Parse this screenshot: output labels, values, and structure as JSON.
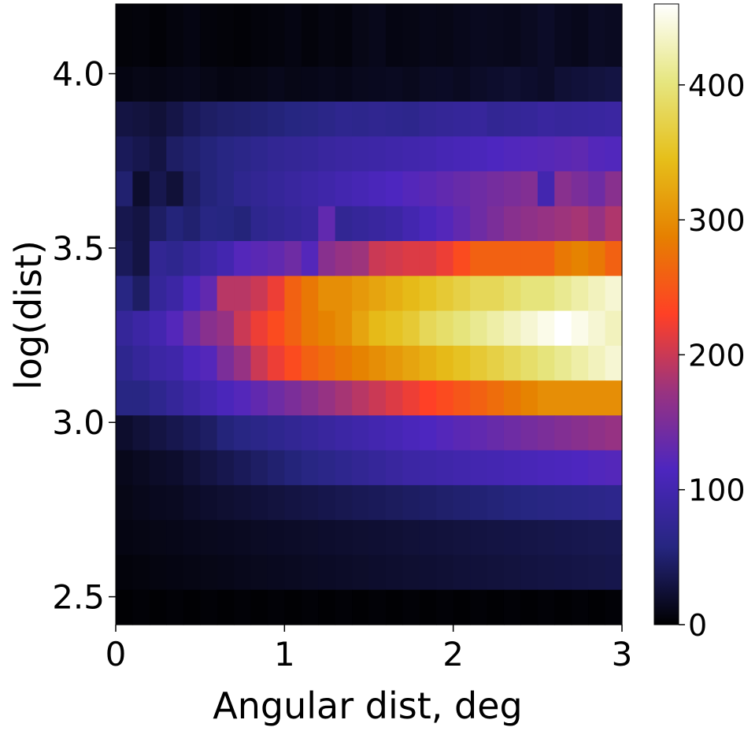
{
  "chart_data": {
    "type": "heatmap",
    "title": "",
    "xlabel": "Angular dist, deg",
    "ylabel": "log(dist)",
    "xlim": [
      0,
      3
    ],
    "ylim": [
      2.42,
      4.2
    ],
    "x_ticks": [
      {
        "value": 0,
        "label": "0"
      },
      {
        "value": 1,
        "label": "1"
      },
      {
        "value": 2,
        "label": "2"
      },
      {
        "value": 3,
        "label": "3"
      }
    ],
    "y_ticks": [
      {
        "value": 2.5,
        "label": "2.5"
      },
      {
        "value": 3.0,
        "label": "3.0"
      },
      {
        "value": 3.5,
        "label": "3.5"
      },
      {
        "value": 4.0,
        "label": "4.0"
      }
    ],
    "colorbar": {
      "colormap": "CMRmap",
      "range": [
        0,
        460
      ],
      "ticks": [
        {
          "value": 0,
          "label": "0"
        },
        {
          "value": 100,
          "label": "100"
        },
        {
          "value": 200,
          "label": "200"
        },
        {
          "value": 300,
          "label": "300"
        },
        {
          "value": 400,
          "label": "400"
        }
      ]
    },
    "grid": false,
    "x_bins": 30,
    "x_bin_width": 0.1,
    "y_bin_edges": [
      2.42,
      2.52,
      2.62,
      2.72,
      2.82,
      2.92,
      3.02,
      3.12,
      3.22,
      3.32,
      3.42,
      3.52,
      3.62,
      3.72,
      3.82,
      3.92,
      4.02,
      4.2
    ],
    "rows_top_to_bottom": [
      [
        4,
        5,
        3,
        6,
        8,
        5,
        4,
        3,
        5,
        6,
        8,
        5,
        7,
        6,
        10,
        12,
        8,
        9,
        11,
        10,
        12,
        14,
        13,
        12,
        15,
        18,
        14,
        12,
        16,
        15
      ],
      [
        8,
        10,
        9,
        11,
        12,
        10,
        8,
        9,
        10,
        12,
        10,
        11,
        12,
        11,
        13,
        14,
        15,
        13,
        16,
        17,
        15,
        18,
        20,
        22,
        20,
        18,
        24,
        26,
        28,
        30
      ],
      [
        30,
        28,
        25,
        32,
        40,
        45,
        48,
        50,
        52,
        55,
        58,
        60,
        65,
        70,
        68,
        72,
        70,
        68,
        75,
        78,
        80,
        82,
        75,
        78,
        80,
        85,
        82,
        84,
        86,
        88
      ],
      [
        40,
        35,
        30,
        45,
        50,
        55,
        60,
        65,
        70,
        75,
        78,
        80,
        85,
        88,
        90,
        92,
        95,
        98,
        100,
        105,
        108,
        110,
        115,
        118,
        120,
        122,
        125,
        128,
        120,
        118
      ],
      [
        50,
        20,
        35,
        25,
        45,
        55,
        60,
        70,
        75,
        80,
        85,
        90,
        95,
        100,
        105,
        110,
        115,
        120,
        125,
        130,
        135,
        140,
        145,
        150,
        155,
        100,
        160,
        150,
        140,
        160
      ],
      [
        35,
        30,
        45,
        55,
        50,
        60,
        58,
        55,
        70,
        75,
        80,
        85,
        130,
        75,
        80,
        85,
        90,
        100,
        110,
        120,
        130,
        140,
        150,
        160,
        165,
        170,
        175,
        180,
        170,
        185
      ],
      [
        40,
        30,
        75,
        70,
        80,
        90,
        100,
        120,
        125,
        130,
        140,
        120,
        160,
        170,
        175,
        200,
        205,
        210,
        210,
        220,
        240,
        260,
        260,
        260,
        260,
        260,
        280,
        290,
        280,
        260
      ],
      [
        60,
        45,
        80,
        90,
        110,
        130,
        190,
        190,
        200,
        220,
        260,
        280,
        300,
        300,
        310,
        320,
        330,
        340,
        350,
        360,
        370,
        380,
        380,
        390,
        400,
        400,
        410,
        420,
        430,
        440
      ],
      [
        80,
        90,
        100,
        120,
        140,
        160,
        170,
        200,
        220,
        240,
        260,
        280,
        290,
        300,
        320,
        340,
        350,
        360,
        380,
        390,
        400,
        410,
        420,
        430,
        440,
        450,
        460,
        450,
        440,
        430
      ],
      [
        70,
        80,
        90,
        95,
        110,
        120,
        150,
        170,
        200,
        220,
        240,
        260,
        270,
        280,
        290,
        300,
        310,
        320,
        330,
        340,
        350,
        360,
        370,
        380,
        390,
        400,
        410,
        420,
        430,
        440
      ],
      [
        60,
        60,
        70,
        80,
        90,
        100,
        110,
        120,
        130,
        140,
        150,
        160,
        170,
        180,
        190,
        200,
        210,
        220,
        230,
        240,
        250,
        260,
        270,
        280,
        290,
        300,
        300,
        300,
        300,
        300
      ],
      [
        20,
        25,
        30,
        35,
        40,
        45,
        55,
        60,
        65,
        70,
        75,
        80,
        85,
        90,
        95,
        100,
        105,
        110,
        115,
        120,
        125,
        130,
        135,
        140,
        145,
        150,
        155,
        160,
        165,
        170
      ],
      [
        12,
        15,
        18,
        20,
        25,
        30,
        35,
        40,
        45,
        50,
        55,
        60,
        65,
        70,
        75,
        80,
        85,
        90,
        92,
        95,
        98,
        100,
        102,
        105,
        108,
        110,
        112,
        115,
        118,
        120
      ],
      [
        10,
        12,
        14,
        15,
        18,
        20,
        22,
        24,
        26,
        28,
        30,
        32,
        34,
        36,
        38,
        40,
        42,
        44,
        46,
        48,
        50,
        52,
        54,
        56,
        58,
        60,
        62,
        64,
        66,
        68
      ],
      [
        8,
        9,
        10,
        11,
        12,
        13,
        14,
        15,
        16,
        17,
        18,
        19,
        20,
        21,
        22,
        23,
        24,
        25,
        26,
        27,
        28,
        29,
        30,
        31,
        32,
        33,
        34,
        35,
        36,
        37
      ],
      [
        5,
        6,
        7,
        8,
        9,
        10,
        11,
        12,
        13,
        14,
        15,
        16,
        17,
        18,
        19,
        20,
        21,
        22,
        23,
        24,
        25,
        26,
        27,
        28,
        29,
        30,
        31,
        32,
        33,
        34
      ],
      [
        2,
        3,
        2,
        3,
        2,
        3,
        2,
        3,
        2,
        3,
        2,
        3,
        2,
        3,
        2,
        3,
        2,
        3,
        2,
        3,
        2,
        3,
        2,
        3,
        2,
        3,
        2,
        3,
        2,
        3
      ]
    ]
  }
}
